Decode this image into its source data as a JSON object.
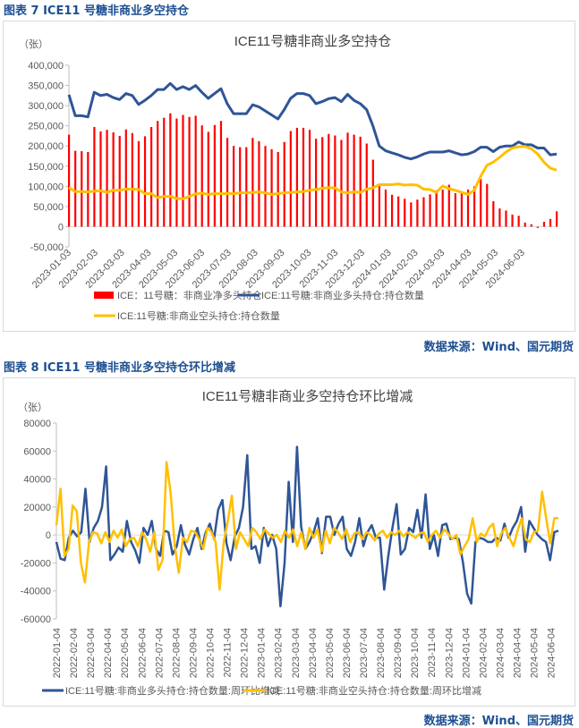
{
  "figure7": {
    "caption": "图表 7  ICE11 号糖非商业多空持仓",
    "source": "数据来源：Wind、国元期货"
  },
  "figure8": {
    "caption": "图表 8  ICE11 号糖非商业多空持仓环比增减",
    "source": "数据来源：Wind、国元期货"
  },
  "chart_data": [
    {
      "type": "bar+line",
      "title": "ICE11号糖非商业多空持仓",
      "ylabel": "（张）",
      "ylim": [
        -50000,
        400000
      ],
      "yticks": [
        "400,000",
        "350,000",
        "300,000",
        "250,000",
        "200,000",
        "150,000",
        "100,000",
        "50,000",
        "0",
        "-50,000"
      ],
      "yticks_values": [
        400000,
        350000,
        300000,
        250000,
        200000,
        150000,
        100000,
        50000,
        0,
        -50000
      ],
      "xticks": [
        "2023-01-03",
        "2023-02-03",
        "2023-03-03",
        "2023-04-03",
        "2023-05-03",
        "2023-06-03",
        "2023-07-03",
        "2023-08-03",
        "2023-09-03",
        "2023-10-03",
        "2023-11-03",
        "2023-12-03",
        "2024-01-03",
        "2024-02-03",
        "2024-03-03",
        "2024-04-03",
        "2024-05-03",
        "2024-06-03"
      ],
      "series": [
        {
          "name": "ICE：11号糖：非商业净多头持仓",
          "kind": "bar",
          "color": "#ff0000",
          "values": [
            228000,
            188000,
            187000,
            185000,
            247000,
            236000,
            240000,
            234000,
            225000,
            241000,
            232000,
            212000,
            224000,
            247000,
            262000,
            270000,
            281000,
            268000,
            277000,
            272000,
            275000,
            251000,
            235000,
            252000,
            262000,
            220000,
            200000,
            197000,
            197000,
            220000,
            212000,
            200000,
            192000,
            185000,
            210000,
            237000,
            245000,
            245000,
            240000,
            218000,
            222000,
            230000,
            226000,
            215000,
            233000,
            228000,
            223000,
            206000,
            166000,
            107000,
            92000,
            79000,
            75000,
            69000,
            60000,
            67000,
            73000,
            80000,
            90000,
            92000,
            104000,
            83000,
            85000,
            92000,
            100000,
            118000,
            106000,
            63000,
            45000,
            40000,
            30000,
            27000,
            10000,
            6000,
            -3000,
            12000,
            19000,
            38000
          ]
        },
        {
          "name": "ICE:11号糖:非商业多头持仓:持仓数量",
          "kind": "line",
          "color": "#2f5597",
          "values": [
            327000,
            275000,
            275000,
            272000,
            333000,
            325000,
            328000,
            320000,
            315000,
            330000,
            325000,
            303000,
            313000,
            325000,
            340000,
            340000,
            355000,
            340000,
            347000,
            340000,
            350000,
            333000,
            318000,
            330000,
            342000,
            305000,
            280000,
            280000,
            280000,
            302000,
            297000,
            287000,
            277000,
            267000,
            290000,
            318000,
            330000,
            330000,
            325000,
            305000,
            310000,
            317000,
            320000,
            310000,
            328000,
            313000,
            305000,
            290000,
            250000,
            200000,
            188000,
            183000,
            178000,
            172000,
            168000,
            173000,
            180000,
            185000,
            185000,
            185000,
            188000,
            183000,
            178000,
            180000,
            186000,
            197000,
            197000,
            186000,
            197000,
            200000,
            200000,
            210000,
            203000,
            203000,
            195000,
            195000,
            178000,
            180000
          ]
        },
        {
          "name": "ICE:11号糖:非商业空头持仓:持仓数量",
          "kind": "line",
          "color": "#ffc000",
          "values": [
            97000,
            87000,
            87000,
            86000,
            88000,
            89000,
            85000,
            90000,
            90000,
            93000,
            93000,
            92000,
            82000,
            82000,
            72000,
            75000,
            75000,
            70000,
            69000,
            75000,
            81000,
            83000,
            80000,
            82000,
            82000,
            82000,
            82000,
            84000,
            84000,
            85000,
            86000,
            84000,
            80000,
            82000,
            84000,
            85000,
            86000,
            87000,
            90000,
            92000,
            95000,
            97000,
            96000,
            86000,
            84000,
            86000,
            85000,
            93000,
            96000,
            104000,
            104000,
            104000,
            106000,
            103000,
            104000,
            103000,
            93000,
            92000,
            85000,
            101000,
            94000,
            90000,
            85000,
            80000,
            90000,
            125000,
            152000,
            160000,
            172000,
            185000,
            195000,
            198000,
            199000,
            193000,
            180000,
            160000,
            145000,
            140000
          ]
        }
      ]
    },
    {
      "type": "line",
      "title": "ICE11号糖非商业多空持仓环比增减",
      "ylabel": "（张）",
      "ylim": [
        -60000,
        80000
      ],
      "yticks": [
        "80000",
        "60000",
        "40000",
        "20000",
        "0",
        "-20000",
        "-40000",
        "-60000"
      ],
      "yticks_values": [
        80000,
        60000,
        40000,
        20000,
        0,
        -20000,
        -40000,
        -60000
      ],
      "xticks": [
        "2022-01-04",
        "2022-02-04",
        "2022-03-04",
        "2022-04-04",
        "2022-05-04",
        "2022-06-04",
        "2022-07-04",
        "2022-08-04",
        "2022-09-04",
        "2022-10-04",
        "2022-11-04",
        "2022-12-04",
        "2023-01-04",
        "2023-02-04",
        "2023-03-04",
        "2023-04-04",
        "2023-05-04",
        "2023-06-04",
        "2023-07-04",
        "2023-08-04",
        "2023-09-04",
        "2023-10-04",
        "2023-11-04",
        "2023-12-04",
        "2024-01-04",
        "2024-02-04",
        "2024-03-04",
        "2024-04-04",
        "2024-05-04",
        "2024-06-04"
      ],
      "series": [
        {
          "name": "ICE:11号糖:非商业多头持仓:持仓数量:周环比增减",
          "color": "#2f5597",
          "values": [
            -5000,
            -17000,
            -18000,
            -2000,
            3000,
            -1000,
            2000,
            33000,
            -5000,
            5000,
            10000,
            20000,
            49000,
            -18000,
            -14000,
            -9000,
            -12000,
            10000,
            -5000,
            -11000,
            -20000,
            5000,
            0,
            10000,
            -10000,
            -15000,
            3000,
            2000,
            -14000,
            -8000,
            7000,
            -7000,
            -14000,
            -3000,
            5000,
            -10000,
            2000,
            8000,
            -3000,
            18000,
            25000,
            -6000,
            -18000,
            -1000,
            5000,
            20000,
            57000,
            -10000,
            -8000,
            -20000,
            5000,
            -8000,
            0,
            -10000,
            -51000,
            -20000,
            38000,
            -5000,
            63000,
            6000,
            -10000,
            -5000,
            2000,
            12000,
            -13000,
            13000,
            13000,
            0,
            8000,
            13000,
            -10000,
            -15000,
            -5000,
            12000,
            -8000,
            2000,
            7000,
            -2000,
            -2000,
            -39000,
            -15000,
            5000,
            22000,
            -14000,
            -10000,
            5000,
            2000,
            18000,
            -2000,
            29000,
            -10000,
            0,
            -15000,
            7000,
            8000,
            -3000,
            -2000,
            -3000,
            -20000,
            -42000,
            -49000,
            -5000,
            -2000,
            -3000,
            -5000,
            -5000,
            -2000,
            -4000,
            8000,
            -2000,
            5000,
            10000,
            20000,
            -12000,
            10000,
            5000,
            0,
            -3000,
            -5000,
            -18000,
            2000,
            3000
          ]
        },
        {
          "name": "ICE:11号糖:非商业空头持仓:持仓数量:周环比增减",
          "color": "#ffc000",
          "values": [
            7000,
            33000,
            -15000,
            -10000,
            21000,
            17000,
            -20000,
            -34000,
            -5000,
            2000,
            1000,
            -6000,
            2000,
            -5000,
            3000,
            -2000,
            4000,
            -8000,
            -3000,
            -2000,
            -8000,
            2000,
            -3000,
            -12000,
            2000,
            -25000,
            -18000,
            52000,
            30000,
            -8000,
            -27000,
            -2000,
            -5000,
            3000,
            2000,
            -3000,
            -10000,
            5000,
            2000,
            -5000,
            -39000,
            -5000,
            10000,
            28000,
            -10000,
            2000,
            -3000,
            -8000,
            5000,
            2000,
            -3000,
            4000,
            1000,
            -2000,
            0,
            -5000,
            3000,
            -2000,
            4000,
            -8000,
            2000,
            -10000,
            5000,
            -2000,
            4000,
            -12000,
            3000,
            -6000,
            5000,
            2000,
            -3000,
            4000,
            -5000,
            1000,
            2000,
            -3000,
            2000,
            0,
            -4000,
            1000,
            3000,
            -2000,
            2000,
            0,
            3000,
            -1000,
            2000,
            0,
            -2000,
            1000,
            2000,
            -5000,
            0,
            3000,
            -2000,
            4000,
            1000,
            -3000,
            0,
            -14000,
            -8000,
            -3000,
            12000,
            -5000,
            1000,
            -1000,
            5000,
            8000,
            -8000,
            1000,
            5000,
            -2000,
            -8000,
            3000,
            12000,
            -3000,
            -5000,
            2000,
            3000,
            31000,
            12000,
            -6000,
            12000,
            12000
          ]
        }
      ]
    }
  ]
}
